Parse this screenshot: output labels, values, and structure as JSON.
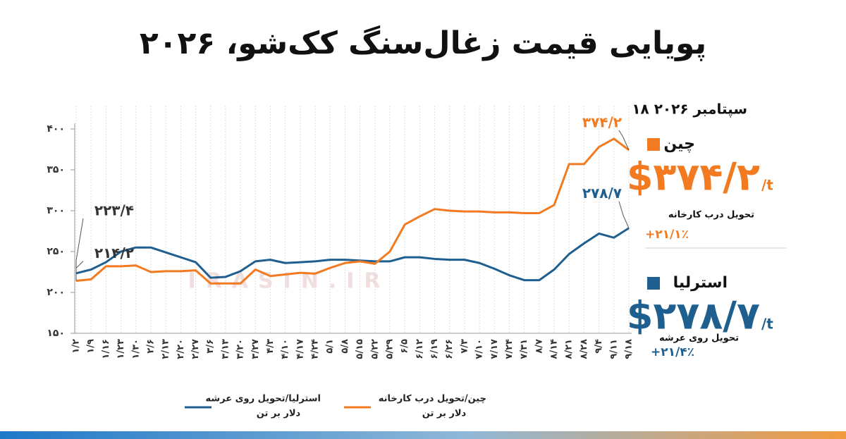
{
  "title": "پویایی قیمت زغال‌سنگ کک‌شو، ۲۰۲۶",
  "watermark": "IRASIN.IR",
  "chart_data": {
    "type": "line",
    "categories": [
      "۱/۲",
      "۱/۹",
      "۱/۱۶",
      "۱/۲۳",
      "۱/۳۰",
      "۲/۶",
      "۲/۱۳",
      "۲/۲۰",
      "۲/۲۷",
      "۳/۶",
      "۳/۱۳",
      "۳/۲۰",
      "۳/۲۷",
      "۴/۳",
      "۴/۱۰",
      "۴/۱۷",
      "۴/۲۴",
      "۵/۱",
      "۵/۸",
      "۵/۱۵",
      "۵/۲۲",
      "۵/۲۹",
      "۶/۵",
      "۶/۱۲",
      "۶/۱۹",
      "۶/۲۶",
      "۷/۳",
      "۷/۱۰",
      "۷/۱۷",
      "۷/۲۴",
      "۷/۳۱",
      "۸/۷",
      "۸/۱۴",
      "۸/۲۱",
      "۸/۲۸",
      "۹/۴",
      "۹/۱۱",
      "۹/۱۸"
    ],
    "series": [
      {
        "name": "استرلیا/تحویل روی عرشه",
        "unit": "دلار بر تن",
        "color": "#1f5f8f",
        "values": [
          223.4,
          228,
          237,
          250,
          255,
          255,
          249,
          243,
          237,
          218,
          219,
          226,
          238,
          240,
          236,
          237,
          238,
          240,
          240,
          239,
          238,
          238,
          243,
          243,
          241,
          240,
          240,
          236,
          229,
          221,
          215,
          215,
          228,
          247,
          260,
          272,
          267,
          278.7
        ],
        "value_labels": [
          "۲۲۳/۴",
          null,
          null,
          null,
          null,
          null,
          null,
          null,
          null,
          null,
          null,
          null,
          null,
          null,
          null,
          null,
          null,
          null,
          null,
          null,
          null,
          null,
          null,
          null,
          null,
          null,
          null,
          null,
          null,
          null,
          null,
          null,
          null,
          null,
          null,
          null,
          null,
          "۲۷۸/۷"
        ]
      },
      {
        "name": "چین/تحویل درب کارخانه",
        "unit": "دلار بر تن",
        "color": "#f27b22",
        "values": [
          214.2,
          216,
          232,
          232,
          233,
          225,
          226,
          226,
          227,
          211,
          211,
          211,
          228,
          220,
          222,
          224,
          223,
          230,
          236,
          238,
          235,
          250,
          283,
          293,
          302,
          300,
          299,
          299,
          298,
          298,
          297,
          297,
          307,
          357,
          357,
          378,
          388,
          374.2
        ],
        "value_labels": [
          "۲۱۴/۲",
          null,
          null,
          null,
          null,
          null,
          null,
          null,
          null,
          null,
          null,
          null,
          null,
          null,
          null,
          null,
          null,
          null,
          null,
          null,
          null,
          null,
          null,
          null,
          null,
          null,
          null,
          null,
          null,
          null,
          null,
          null,
          null,
          null,
          null,
          null,
          null,
          "۳۷۴/۲"
        ]
      }
    ],
    "ylim": [
      150,
      400
    ],
    "yticks": [
      {
        "value": 150,
        "label": "۱۵۰"
      },
      {
        "value": 200,
        "label": "۲۰۰"
      },
      {
        "value": 250,
        "label": "۲۵۰"
      },
      {
        "value": 300,
        "label": "۳۰۰"
      },
      {
        "value": 350,
        "label": "۳۵۰"
      },
      {
        "value": 400,
        "label": "۴۰۰"
      }
    ],
    "grid": true
  },
  "panel": {
    "date": "۱۸ سپتامبر ۲۰۲۶",
    "items": [
      {
        "name": "چین",
        "color": "#f27b22",
        "price": "$۳۷۴/۲",
        "unit": "/t",
        "delivery": "تحویل درب کارخانه",
        "change": "+۲۱/۱٪"
      },
      {
        "name": "استرلیا",
        "color": "#1f5f8f",
        "price": "$۲۷۸/۷",
        "unit": "/t",
        "delivery": "تحویل روی عرشه",
        "change": "+۲۱/۴٪"
      }
    ]
  }
}
